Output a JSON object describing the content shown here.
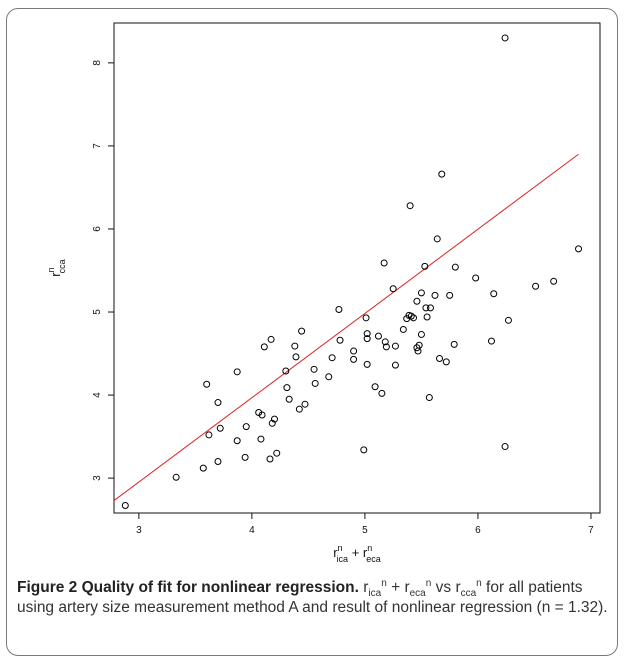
{
  "chart_data": {
    "type": "scatter",
    "title": "",
    "xlabel": {
      "base": "r",
      "sup1": "n",
      "sub1": "ica",
      "plus": " + ",
      "sup2": "n",
      "sub2": "eca"
    },
    "ylabel": {
      "base": "r",
      "sup": "n",
      "sub": "cca"
    },
    "xlim": [
      2.78,
      7.08
    ],
    "ylim": [
      2.58,
      8.48
    ],
    "x_ticks": [
      3,
      4,
      5,
      6,
      7
    ],
    "y_ticks": [
      3,
      4,
      5,
      6,
      7,
      8
    ],
    "grid": false,
    "point_color": "#000000",
    "fit_color": "#e02020",
    "fit_line": {
      "x": [
        2.78,
        6.89
      ],
      "y": [
        2.73,
        6.9
      ]
    },
    "points": [
      [
        2.88,
        2.67
      ],
      [
        3.33,
        3.01
      ],
      [
        3.57,
        3.12
      ],
      [
        3.6,
        4.13
      ],
      [
        3.62,
        3.52
      ],
      [
        3.7,
        3.91
      ],
      [
        3.7,
        3.2
      ],
      [
        3.72,
        3.6
      ],
      [
        3.87,
        4.28
      ],
      [
        3.87,
        3.45
      ],
      [
        3.94,
        3.25
      ],
      [
        3.95,
        3.62
      ],
      [
        4.06,
        3.79
      ],
      [
        4.08,
        3.47
      ],
      [
        4.09,
        3.76
      ],
      [
        4.11,
        4.58
      ],
      [
        4.16,
        3.23
      ],
      [
        4.17,
        4.67
      ],
      [
        4.18,
        3.66
      ],
      [
        4.2,
        3.71
      ],
      [
        4.22,
        3.3
      ],
      [
        4.3,
        4.29
      ],
      [
        4.31,
        4.09
      ],
      [
        4.33,
        3.95
      ],
      [
        4.38,
        4.59
      ],
      [
        4.39,
        4.46
      ],
      [
        4.42,
        3.83
      ],
      [
        4.44,
        4.77
      ],
      [
        4.47,
        3.89
      ],
      [
        4.55,
        4.31
      ],
      [
        4.56,
        4.14
      ],
      [
        4.68,
        4.22
      ],
      [
        4.71,
        4.45
      ],
      [
        4.77,
        5.03
      ],
      [
        4.78,
        4.66
      ],
      [
        4.9,
        4.53
      ],
      [
        4.9,
        4.43
      ],
      [
        4.99,
        3.34
      ],
      [
        5.01,
        4.93
      ],
      [
        5.02,
        4.74
      ],
      [
        5.02,
        4.68
      ],
      [
        5.02,
        4.37
      ],
      [
        5.09,
        4.1
      ],
      [
        5.12,
        4.71
      ],
      [
        5.15,
        4.02
      ],
      [
        5.17,
        5.59
      ],
      [
        5.18,
        4.64
      ],
      [
        5.19,
        4.58
      ],
      [
        5.25,
        5.28
      ],
      [
        5.27,
        4.59
      ],
      [
        5.27,
        4.36
      ],
      [
        5.34,
        4.79
      ],
      [
        5.37,
        4.92
      ],
      [
        5.39,
        4.96
      ],
      [
        5.4,
        6.28
      ],
      [
        5.41,
        4.95
      ],
      [
        5.43,
        4.93
      ],
      [
        5.46,
        5.13
      ],
      [
        5.46,
        4.57
      ],
      [
        5.47,
        4.53
      ],
      [
        5.48,
        4.6
      ],
      [
        5.5,
        5.23
      ],
      [
        5.5,
        4.73
      ],
      [
        5.53,
        5.55
      ],
      [
        5.54,
        5.05
      ],
      [
        5.55,
        4.94
      ],
      [
        5.57,
        3.97
      ],
      [
        5.58,
        5.05
      ],
      [
        5.62,
        5.2
      ],
      [
        5.64,
        5.88
      ],
      [
        5.66,
        4.44
      ],
      [
        5.68,
        6.66
      ],
      [
        5.72,
        4.4
      ],
      [
        5.75,
        5.2
      ],
      [
        5.79,
        4.61
      ],
      [
        5.8,
        5.54
      ],
      [
        5.98,
        5.41
      ],
      [
        6.12,
        4.65
      ],
      [
        6.14,
        5.22
      ],
      [
        6.24,
        8.3
      ],
      [
        6.24,
        3.38
      ],
      [
        6.27,
        4.9
      ],
      [
        6.51,
        5.31
      ],
      [
        6.67,
        5.37
      ],
      [
        6.89,
        5.76
      ]
    ]
  },
  "caption": {
    "figure_label": "Figure 2",
    "figure_title": "Quality of fit for nonlinear regression",
    "r": "r",
    "n": "n",
    "ica": "ica",
    "eca": "eca",
    "cca": "cca",
    "plus": " + ",
    "vs": " vs ",
    "rest": " for all patients using artery size measurement method A and result of nonlinear regression (n = 1.32)."
  }
}
